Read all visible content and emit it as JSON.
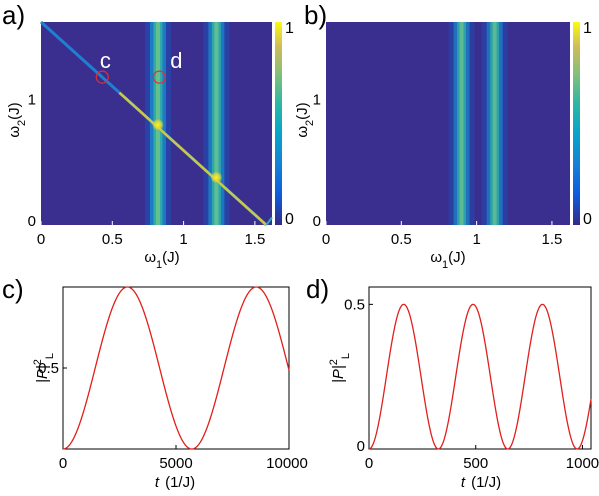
{
  "panels": {
    "a": {
      "label": "a)",
      "type": "heatmap",
      "xlabel": "ω1(J)",
      "ylabel": "ω2(J)",
      "xlim": [
        0,
        1.62
      ],
      "ylim": [
        0,
        1.62
      ],
      "xticks": [
        {
          "v": 0,
          "t": "0"
        },
        {
          "v": 0.5,
          "t": "0.5"
        },
        {
          "v": 1,
          "t": "1"
        },
        {
          "v": 1.5,
          "t": "1.5"
        }
      ],
      "yticks": [
        {
          "v": 0,
          "t": "0"
        },
        {
          "v": 1,
          "t": "1"
        }
      ],
      "vertical_bands": [
        {
          "x": 0.82,
          "intensity": 0.85
        },
        {
          "x": 1.23,
          "intensity": 0.8
        }
      ],
      "diagonal_line": {
        "from": [
          0,
          1.62
        ],
        "to": [
          1.58,
          0
        ],
        "bright_spots": [
          {
            "x": 0.82,
            "y": 0.8
          },
          {
            "x": 1.23,
            "y": 0.38
          }
        ]
      },
      "markers": [
        {
          "name": "c",
          "x": 0.43,
          "y": 1.18
        },
        {
          "name": "d",
          "x": 0.83,
          "y": 1.18
        }
      ],
      "colorbar": {
        "min": 0,
        "max": 1,
        "ticks": [
          {
            "v": 0,
            "t": "0"
          },
          {
            "v": 1,
            "t": "1"
          }
        ]
      }
    },
    "b": {
      "label": "b)",
      "type": "heatmap",
      "xlabel": "ω1(J)",
      "ylabel": "ω2(J)",
      "xlim": [
        0,
        1.62
      ],
      "ylim": [
        0,
        1.62
      ],
      "xticks": [
        {
          "v": 0,
          "t": "0"
        },
        {
          "v": 0.5,
          "t": "0.5"
        },
        {
          "v": 1,
          "t": "1"
        },
        {
          "v": 1.5,
          "t": "1.5"
        }
      ],
      "yticks": [
        {
          "v": 0,
          "t": "0"
        },
        {
          "v": 1,
          "t": "1"
        }
      ],
      "vertical_bands": [
        {
          "x": 0.9,
          "intensity": 0.7
        },
        {
          "x": 1.12,
          "intensity": 0.7
        }
      ],
      "colorbar": {
        "min": 0,
        "max": 1,
        "ticks": [
          {
            "v": 0,
            "t": "0"
          },
          {
            "v": 1,
            "t": "1"
          }
        ]
      }
    }
  },
  "chart_data": [
    {
      "type": "line",
      "label": "c)",
      "xlabel": "t",
      "xunit": "(1/J)",
      "ylabel": "|P|",
      "xlim": [
        0,
        10000
      ],
      "ylim": [
        0,
        1
      ],
      "xticks": [
        {
          "v": 0,
          "t": "0"
        },
        {
          "v": 5000,
          "t": "5000"
        },
        {
          "v": 10000,
          "t": "10000"
        }
      ],
      "yticks": [
        {
          "v": 0.5,
          "t": "0.5"
        }
      ],
      "color": "#e0201c",
      "function": {
        "amplitude": 1.0,
        "period": 5700
      }
    },
    {
      "type": "line",
      "label": "d)",
      "xlabel": "t",
      "xunit": "(1/J)",
      "ylabel": "|P|",
      "xlim": [
        0,
        1040
      ],
      "ylim": [
        0,
        0.56
      ],
      "xticks": [
        {
          "v": 0,
          "t": "0"
        },
        {
          "v": 500,
          "t": "500"
        },
        {
          "v": 1000,
          "t": "1000"
        }
      ],
      "yticks": [
        {
          "v": 0,
          "t": "0"
        },
        {
          "v": 0.5,
          "t": "0.5"
        }
      ],
      "color": "#e0201c",
      "function": {
        "amplitude": 0.5,
        "period": 325
      }
    }
  ]
}
